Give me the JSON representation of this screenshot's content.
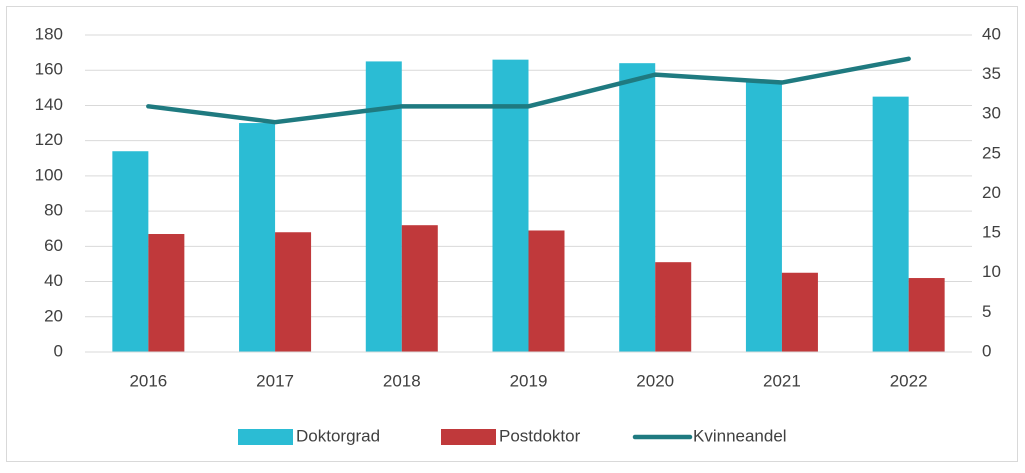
{
  "chart_data": {
    "type": "bar-line",
    "categories": [
      "2016",
      "2017",
      "2018",
      "2019",
      "2020",
      "2021",
      "2022"
    ],
    "series": [
      {
        "name": "Doktorgrad",
        "color": "#2bbcd4",
        "values": [
          114,
          130,
          165,
          166,
          164,
          154,
          145
        ]
      },
      {
        "name": "Postdoktor",
        "color": "#c0393b",
        "values": [
          67,
          68,
          72,
          69,
          51,
          45,
          42
        ]
      },
      {
        "name": "Kvinneandel",
        "color": "#1f7a80",
        "axis": "y2",
        "values": [
          31,
          29,
          31,
          31,
          35,
          34,
          37
        ]
      }
    ],
    "ylim": [
      0,
      180
    ],
    "yticks": [
      0,
      20,
      40,
      60,
      80,
      100,
      120,
      140,
      160,
      180
    ],
    "y2lim": [
      0,
      40
    ],
    "y2ticks": [
      0,
      5,
      10,
      15,
      20,
      25,
      30,
      35,
      40
    ],
    "grid": true,
    "legend": "bottom"
  }
}
